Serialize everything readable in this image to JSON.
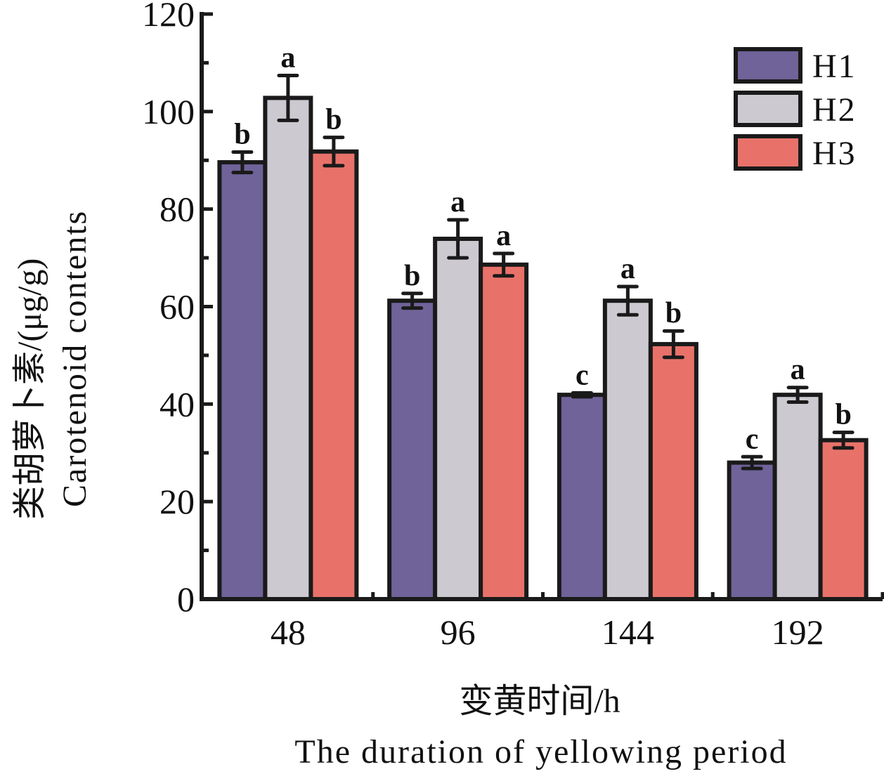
{
  "chart_data": {
    "type": "bar",
    "title": "",
    "xlabel_cn": "变黄时间/h",
    "xlabel_en": "The duration of yellowing period",
    "ylabel_cn": "类胡萝卜素/(μg/g)",
    "ylabel_en": "Carotenoid contents",
    "ylim": [
      0,
      120
    ],
    "yticks": [
      "0",
      "20",
      "40",
      "60",
      "80",
      "100",
      "120"
    ],
    "ytick_values": [
      0,
      20,
      40,
      60,
      80,
      100,
      120
    ],
    "yminor_step": 10,
    "categories": [
      "48",
      "96",
      "144",
      "192"
    ],
    "legend_position": "top-right",
    "grid": false,
    "series": [
      {
        "name": "H1",
        "color": "#6F6399",
        "values": [
          89.6,
          61.2,
          41.9,
          28.0
        ],
        "errors": [
          2.1,
          1.5,
          0.4,
          1.2
        ],
        "labels": [
          "b",
          "b",
          "c",
          "c"
        ]
      },
      {
        "name": "H2",
        "color": "#CDC9D1",
        "values": [
          102.8,
          73.9,
          61.2,
          41.9
        ],
        "errors": [
          4.6,
          3.9,
          2.9,
          1.5
        ],
        "labels": [
          "a",
          "a",
          "a",
          "a"
        ]
      },
      {
        "name": "H3",
        "color": "#E8726A",
        "values": [
          91.8,
          68.6,
          52.3,
          32.6
        ],
        "errors": [
          2.9,
          2.3,
          2.7,
          1.6
        ],
        "labels": [
          "b",
          "a",
          "b",
          "b"
        ]
      }
    ]
  }
}
